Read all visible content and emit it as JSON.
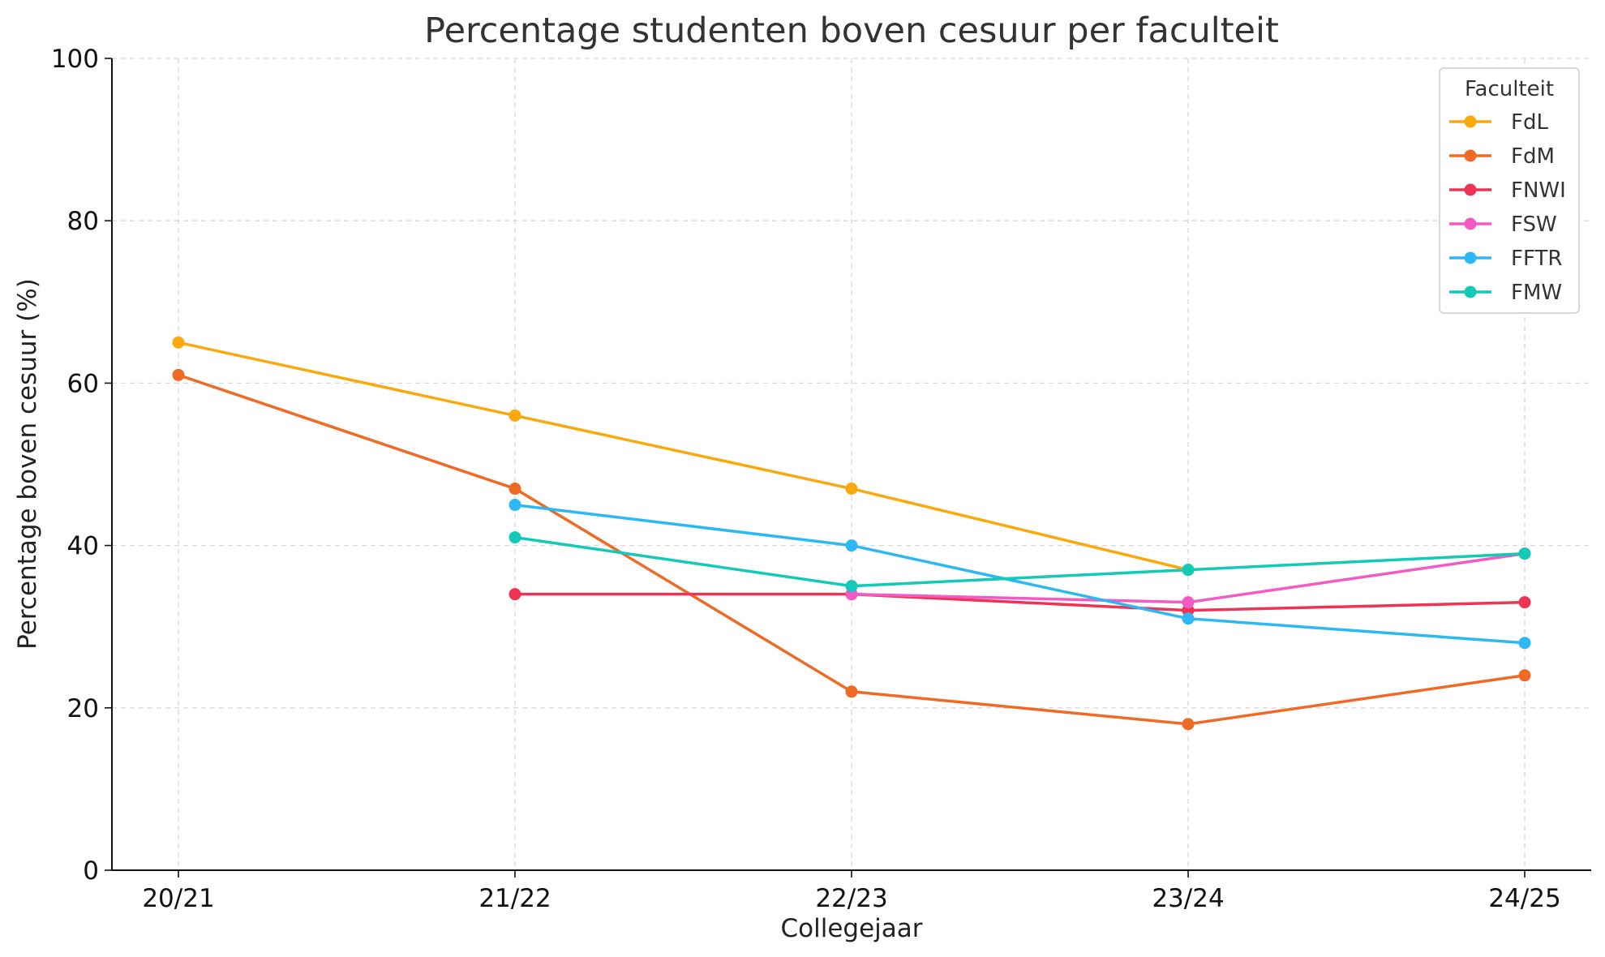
{
  "chart_data": {
    "type": "line",
    "title": "Percentage studenten boven cesuur per faculteit",
    "xlabel": "Collegejaar",
    "ylabel": "Percentage boven cesuur (%)",
    "categories": [
      "20/21",
      "21/22",
      "22/23",
      "23/24",
      "24/25"
    ],
    "ylim": [
      0,
      100
    ],
    "yticks": [
      0,
      20,
      40,
      60,
      80,
      100
    ],
    "grid": true,
    "legend": {
      "title": "Faculteit",
      "position": "top-right"
    },
    "series": [
      {
        "name": "FdL",
        "color": "#f9a90d",
        "values": [
          65,
          56,
          47,
          37,
          null
        ]
      },
      {
        "name": "FdM",
        "color": "#ef6a24",
        "values": [
          61,
          47,
          22,
          18,
          24
        ]
      },
      {
        "name": "FNWI",
        "color": "#ef3355",
        "values": [
          null,
          34,
          34,
          32,
          33
        ]
      },
      {
        "name": "FSW",
        "color": "#f45ac3",
        "values": [
          null,
          null,
          34,
          33,
          39
        ]
      },
      {
        "name": "FFTR",
        "color": "#2db8f4",
        "values": [
          null,
          45,
          40,
          31,
          28
        ]
      },
      {
        "name": "FMW",
        "color": "#13c9b7",
        "values": [
          null,
          41,
          35,
          37,
          39
        ]
      }
    ]
  }
}
